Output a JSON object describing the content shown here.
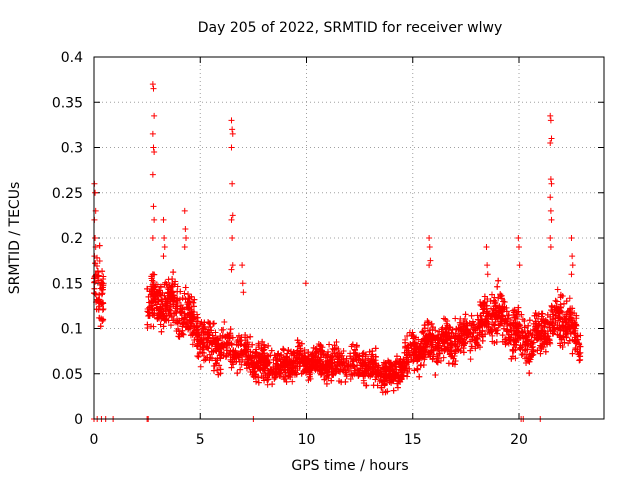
{
  "chart_data": {
    "type": "scatter",
    "title": "Day 205 of 2022, SRMTID for receiver wlwy",
    "xlabel": "GPS time / hours",
    "ylabel": "SRMTID / TECUs",
    "xlim": [
      0,
      24
    ],
    "ylim": [
      0,
      0.4
    ],
    "grid": true,
    "marker": "+",
    "marker_color": "#ff0000",
    "x_ticks": [
      0,
      5,
      10,
      15,
      20
    ],
    "x_tick_labels": [
      "0",
      "5",
      "10",
      "15",
      "20"
    ],
    "y_ticks": [
      0,
      0.05,
      0.1,
      0.15,
      0.2,
      0.25,
      0.3,
      0.35,
      0.4
    ],
    "y_tick_labels": [
      "0",
      "0.05",
      "0.1",
      "0.15",
      "0.2",
      "0.25",
      "0.3",
      "0.35",
      "0.4"
    ],
    "envelope": [
      {
        "x": 0.0,
        "y": 0.15,
        "spread": 0.05
      },
      {
        "x": 0.4,
        "y": 0.13,
        "spread": 0.05
      },
      {
        "x": 2.6,
        "y": 0.13,
        "spread": 0.04
      },
      {
        "x": 3.5,
        "y": 0.125,
        "spread": 0.04
      },
      {
        "x": 4.5,
        "y": 0.11,
        "spread": 0.04
      },
      {
        "x": 5.5,
        "y": 0.085,
        "spread": 0.035
      },
      {
        "x": 6.5,
        "y": 0.075,
        "spread": 0.03
      },
      {
        "x": 7.5,
        "y": 0.065,
        "spread": 0.028
      },
      {
        "x": 9.0,
        "y": 0.06,
        "spread": 0.025
      },
      {
        "x": 11.0,
        "y": 0.065,
        "spread": 0.025
      },
      {
        "x": 13.0,
        "y": 0.055,
        "spread": 0.025
      },
      {
        "x": 14.0,
        "y": 0.05,
        "spread": 0.025
      },
      {
        "x": 15.0,
        "y": 0.075,
        "spread": 0.03
      },
      {
        "x": 16.5,
        "y": 0.085,
        "spread": 0.035
      },
      {
        "x": 18.0,
        "y": 0.1,
        "spread": 0.035
      },
      {
        "x": 19.0,
        "y": 0.11,
        "spread": 0.04
      },
      {
        "x": 20.5,
        "y": 0.09,
        "spread": 0.035
      },
      {
        "x": 21.5,
        "y": 0.1,
        "spread": 0.035
      },
      {
        "x": 22.3,
        "y": 0.11,
        "spread": 0.04
      },
      {
        "x": 22.9,
        "y": 0.08,
        "spread": 0.03
      }
    ],
    "data_gap": [
      0.45,
      2.5
    ],
    "point_density_per_hour": 220,
    "spikes": [
      {
        "x": 0.05,
        "values": [
          0.26,
          0.25,
          0.23,
          0.22,
          0.2,
          0.19,
          0.18
        ]
      },
      {
        "x": 2.8,
        "values": [
          0.37,
          0.365,
          0.335,
          0.315,
          0.3,
          0.295,
          0.27,
          0.235,
          0.22,
          0.2
        ]
      },
      {
        "x": 3.3,
        "values": [
          0.22,
          0.2,
          0.19,
          0.18
        ]
      },
      {
        "x": 4.3,
        "values": [
          0.23,
          0.21,
          0.2,
          0.19
        ]
      },
      {
        "x": 6.5,
        "values": [
          0.33,
          0.32,
          0.315,
          0.3,
          0.26,
          0.225,
          0.22,
          0.2,
          0.17,
          0.165
        ]
      },
      {
        "x": 7.0,
        "values": [
          0.17,
          0.15,
          0.14
        ]
      },
      {
        "x": 10.0,
        "values": [
          0.15
        ]
      },
      {
        "x": 15.8,
        "values": [
          0.2,
          0.19,
          0.175,
          0.17
        ]
      },
      {
        "x": 18.5,
        "values": [
          0.19,
          0.17,
          0.16
        ]
      },
      {
        "x": 20.0,
        "values": [
          0.2,
          0.19,
          0.17
        ]
      },
      {
        "x": 21.5,
        "values": [
          0.335,
          0.33,
          0.31,
          0.305,
          0.265,
          0.26,
          0.245,
          0.23,
          0.22,
          0.2,
          0.19
        ]
      },
      {
        "x": 22.5,
        "values": [
          0.2,
          0.18,
          0.17,
          0.16
        ]
      }
    ],
    "zero_points": [
      0.0,
      0.15,
      0.35,
      0.55,
      0.9,
      2.5,
      2.55,
      7.5,
      20.1,
      20.2,
      21.0
    ]
  }
}
